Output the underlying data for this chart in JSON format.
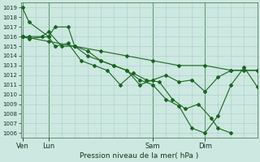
{
  "bg_color": "#cce8e0",
  "grid_color": "#aacccc",
  "line_color": "#1a6620",
  "xlabel": "Pression niveau de la mer( hPa )",
  "ylim": [
    1005.5,
    1019.5
  ],
  "yticks": [
    1006,
    1007,
    1008,
    1009,
    1010,
    1011,
    1012,
    1013,
    1014,
    1015,
    1016,
    1017,
    1018,
    1019
  ],
  "day_labels": [
    "Ven",
    "Lun",
    "Sam",
    "Dim"
  ],
  "day_positions": [
    0,
    8,
    40,
    56
  ],
  "xlim": [
    -0.5,
    72
  ],
  "lines": [
    {
      "x": [
        0,
        8,
        16,
        24,
        32,
        40,
        48,
        56,
        64,
        72
      ],
      "y": [
        1016.0,
        1015.5,
        1015.0,
        1014.5,
        1014.0,
        1013.5,
        1013.0,
        1013.0,
        1012.5,
        1012.5
      ],
      "marker": "D",
      "lw": 0.8
    },
    {
      "x": [
        0,
        2,
        8,
        10,
        14,
        16,
        20,
        24,
        28,
        32,
        36,
        40,
        44,
        48,
        52,
        56,
        60,
        64,
        68,
        72
      ],
      "y": [
        1019.0,
        1017.5,
        1016.0,
        1017.0,
        1017.0,
        1015.0,
        1014.5,
        1013.5,
        1013.0,
        1012.5,
        1011.0,
        1011.5,
        1012.0,
        1011.3,
        1011.5,
        1010.3,
        1011.8,
        1012.5,
        1012.5,
        1012.5
      ],
      "marker": "D",
      "lw": 0.8
    },
    {
      "x": [
        0,
        2,
        8,
        10,
        14,
        18,
        22,
        26,
        30,
        34,
        38,
        42,
        46,
        50,
        54,
        58,
        60,
        64
      ],
      "y": [
        1016.0,
        1015.8,
        1016.0,
        1015.0,
        1015.3,
        1013.5,
        1013.0,
        1012.5,
        1011.0,
        1012.2,
        1011.5,
        1011.3,
        1009.5,
        1008.5,
        1009.0,
        1007.5,
        1006.5,
        1006.0
      ],
      "marker": "D",
      "lw": 0.8
    },
    {
      "x": [
        0,
        2,
        6,
        8,
        12,
        16,
        20,
        24,
        28,
        32,
        36,
        40,
        44,
        48,
        52,
        56,
        60,
        64,
        68,
        72
      ],
      "y": [
        1016.0,
        1016.0,
        1016.0,
        1016.5,
        1015.0,
        1015.0,
        1014.0,
        1013.5,
        1013.0,
        1012.5,
        1011.5,
        1011.0,
        1009.5,
        1008.8,
        1006.5,
        1006.0,
        1007.8,
        1011.0,
        1012.8,
        1010.8
      ],
      "marker": "D",
      "lw": 0.8
    }
  ]
}
